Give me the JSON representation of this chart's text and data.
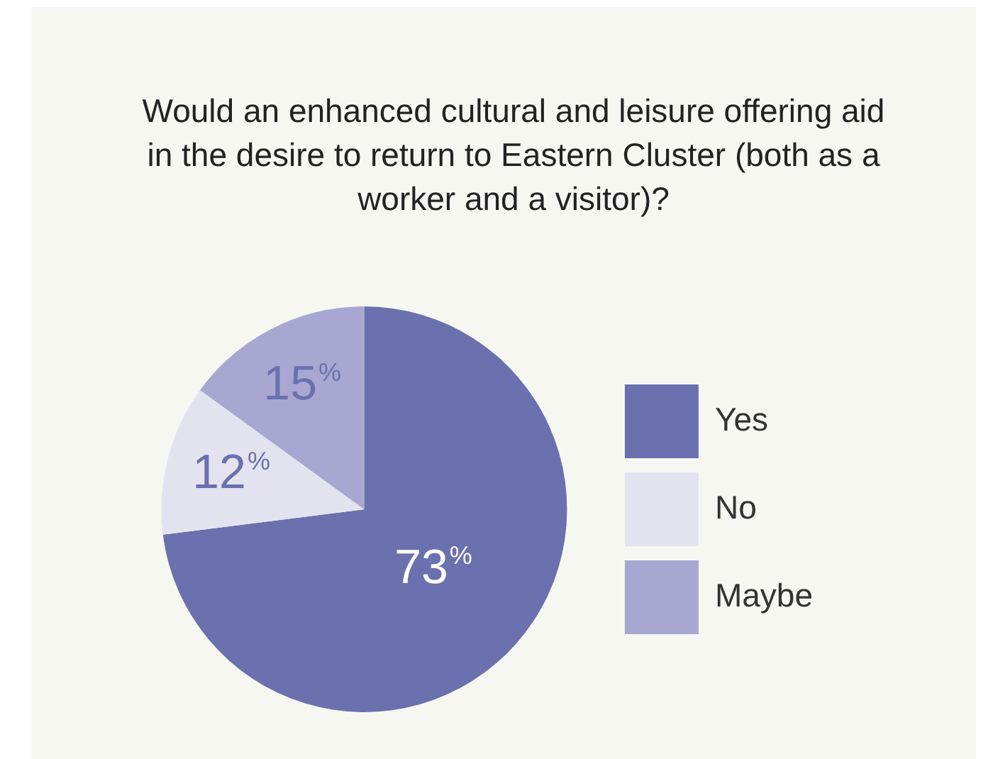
{
  "chart_data": {
    "type": "pie",
    "title": "Would an enhanced cultural and leisure offering aid in the desire to return to Eastern Cluster (both as a worker and a visitor)?",
    "categories": [
      "Yes",
      "No",
      "Maybe"
    ],
    "values": [
      73,
      12,
      15
    ],
    "colors": [
      "#6b70ae",
      "#e3e3f0",
      "#a7a7d2"
    ],
    "value_labels": [
      "73%",
      "12%",
      "15%"
    ],
    "legend": "right"
  }
}
